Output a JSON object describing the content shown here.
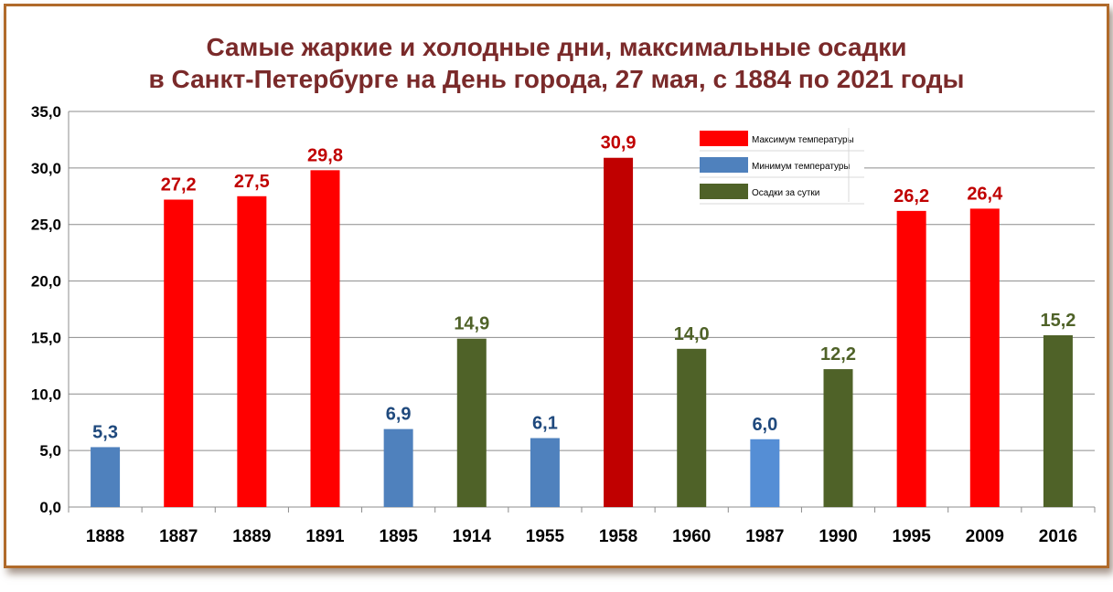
{
  "chart_data": {
    "type": "bar",
    "title": "Самые жаркие и холодные дни, максимальные осадки",
    "subtitle": "в Санкт-Петербурге на День города, 27 мая, с 1884 по 2021 годы",
    "categories": [
      "1888",
      "1887",
      "1889",
      "1891",
      "1895",
      "1914",
      "1955",
      "1958",
      "1960",
      "1987",
      "1990",
      "1995",
      "2009",
      "2016"
    ],
    "values": [
      5.3,
      27.2,
      27.5,
      29.8,
      6.9,
      14.9,
      6.1,
      30.9,
      14.0,
      6.0,
      12.2,
      26.2,
      26.4,
      15.2
    ],
    "value_labels": [
      "5,3",
      "27,2",
      "27,5",
      "29,8",
      "6,9",
      "14,9",
      "6,1",
      "30,9",
      "14,0",
      "6,0",
      "12,2",
      "26,2",
      "26,4",
      "15,2"
    ],
    "kinds": [
      "min",
      "max",
      "max",
      "max",
      "min",
      "precip",
      "min",
      "max",
      "precip",
      "min",
      "precip",
      "max",
      "max",
      "precip"
    ],
    "ylim": [
      0,
      35
    ],
    "yticks": [
      0,
      5,
      10,
      15,
      20,
      25,
      30,
      35
    ],
    "ytick_labels": [
      "0,0",
      "5,0",
      "10,0",
      "15,0",
      "20,0",
      "25,0",
      "30,0",
      "35,0"
    ],
    "grid": true,
    "legend_position": "top-right",
    "legend": [
      {
        "key": "max",
        "label": "Максимум температуры"
      },
      {
        "key": "min",
        "label": "Минимум температуры"
      },
      {
        "key": "precip",
        "label": "Осадки за сутки"
      }
    ],
    "colors": {
      "max": "#ff0000",
      "max_highlight": "#c00000",
      "min": "#4f81bd",
      "min_alt": "#558ed5",
      "precip": "#4f6228",
      "label_max": "#c00000",
      "label_min": "#1f497d",
      "label_precip": "#4f6228",
      "frame": "#b06a2a",
      "title": "#7a2a2a"
    },
    "bar_color_overrides": {
      "1958": "max_highlight",
      "1987": "min_alt"
    }
  }
}
